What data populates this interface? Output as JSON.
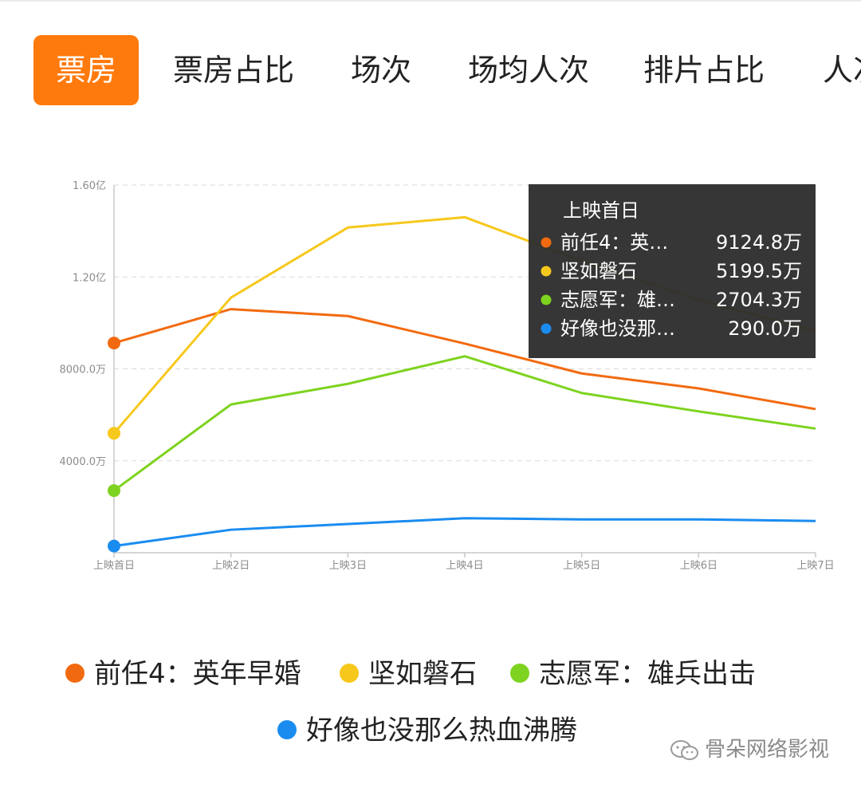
{
  "tabs": [
    {
      "label": "票房",
      "active": true
    },
    {
      "label": "票房占比",
      "active": false
    },
    {
      "label": "场次",
      "active": false
    },
    {
      "label": "场均人次",
      "active": false
    },
    {
      "label": "排片占比",
      "active": false
    },
    {
      "label": "人次",
      "active": false
    }
  ],
  "chart_data": {
    "type": "line",
    "title": "",
    "xlabel": "",
    "ylabel": "",
    "categories": [
      "上映首日",
      "上映2日",
      "上映3日",
      "上映4日",
      "上映5日",
      "上映6日",
      "上映7日"
    ],
    "ylim": [
      0,
      16000
    ],
    "y_unit": "万",
    "y_ticks": [
      {
        "value": 4000,
        "label": "4000.0万"
      },
      {
        "value": 8000,
        "label": "8000.0万"
      },
      {
        "value": 12000,
        "label": "1.20亿"
      },
      {
        "value": 16000,
        "label": "1.60亿"
      }
    ],
    "grid": true,
    "series": [
      {
        "name": "前任4：英年早婚",
        "color": "#f26a10",
        "values": [
          9124.8,
          10600,
          10300,
          9100,
          7800,
          7150,
          6250
        ]
      },
      {
        "name": "坚如磐石",
        "color": "#f7c81c",
        "values": [
          5199.5,
          11100,
          14150,
          14600,
          12700,
          11000,
          9650
        ]
      },
      {
        "name": "志愿军：雄兵出击",
        "color": "#7ed320",
        "values": [
          2704.3,
          6450,
          7350,
          8550,
          6950,
          6150,
          5400
        ]
      },
      {
        "name": "好像也没那么热血沸腾",
        "color": "#1a8cf0",
        "values": [
          290.0,
          1000,
          1250,
          1500,
          1450,
          1450,
          1380
        ]
      }
    ],
    "tooltip": {
      "title": "上映首日",
      "rows": [
        {
          "label": "前任4：英…",
          "value": "9124.8万",
          "color": "#f26a10"
        },
        {
          "label": "坚如磐石",
          "value": "5199.5万",
          "color": "#f7c81c"
        },
        {
          "label": "志愿军：雄…",
          "value": "2704.3万",
          "color": "#7ed320"
        },
        {
          "label": "好像也没那…",
          "value": "290.0万",
          "color": "#1a8cf0"
        }
      ]
    },
    "legend_position": "bottom"
  },
  "watermark": {
    "text": "骨朵网络影视"
  }
}
